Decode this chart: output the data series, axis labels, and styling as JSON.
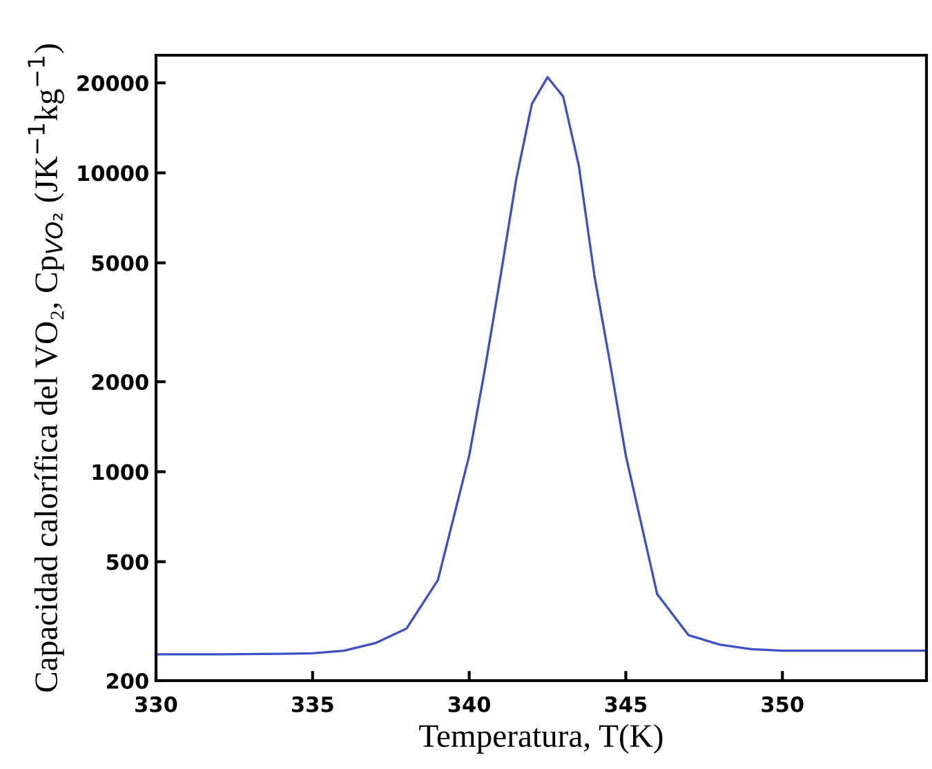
{
  "chart_data": {
    "type": "line",
    "xlabel": "Temperatura, T(K)",
    "ylabel": "Capacidad calorífica del VO₂, Cp$_{VO₂}$ (JK$^{−1}$kg$^{−1}$)",
    "x": [
      330,
      332,
      334,
      335,
      336,
      337,
      338,
      339,
      340,
      340.5,
      341,
      341.5,
      342,
      342.5,
      343,
      343.5,
      344,
      344.5,
      345,
      346,
      347,
      348,
      349,
      350,
      352,
      354.6
    ],
    "series": [
      {
        "color": "#3d50c8",
        "values": [
          245,
          245,
          246,
          247,
          252,
          267,
          299,
          434,
          1133,
          2200,
          4510,
          9500,
          17000,
          20900,
          18000,
          10560,
          4510,
          2300,
          1133,
          390,
          284,
          264,
          255,
          252,
          252,
          252
        ]
      }
    ],
    "xlim": [
      330,
      354.6
    ],
    "ylim": [
      200,
      24750
    ],
    "xticks": [
      330,
      335,
      340,
      345,
      350
    ],
    "yticks": [
      200,
      500,
      1000,
      2000,
      5000,
      10000,
      20000
    ],
    "log": "y",
    "grid": false,
    "line_style": "solid",
    "marker": "none"
  }
}
